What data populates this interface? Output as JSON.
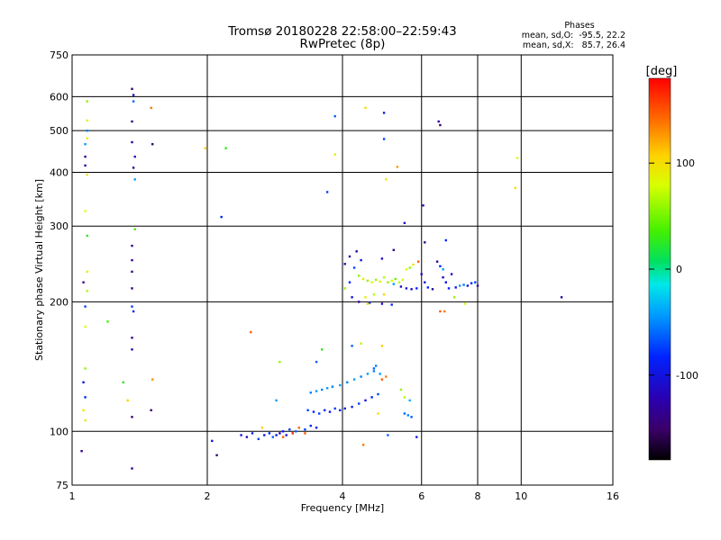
{
  "chart_data": {
    "type": "scatter",
    "title": "Tromsø 20180228 22:58:00–22:59:43",
    "subtitle": "RwPretec (8p)",
    "xlabel": "Frequency [MHz]",
    "ylabel": "Stationary phase Virtual Height [km]",
    "x_scale": "log",
    "y_scale": "log",
    "xlim": [
      1,
      16
    ],
    "ylim": [
      75,
      750
    ],
    "x_ticks": [
      1,
      2,
      4,
      6,
      8,
      10,
      16
    ],
    "y_ticks": [
      75,
      100,
      200,
      300,
      400,
      500,
      600,
      750
    ],
    "grid": true,
    "stats": {
      "heading": "Phases",
      "line_o": "mean, sd,O:  -95.5, 22.2",
      "line_x": "mean, sd,X:   85.7, 26.4"
    },
    "colorbar": {
      "label": "[deg]",
      "min": -180,
      "max": 180,
      "ticks": [
        100,
        0,
        -100
      ]
    },
    "points": [
      [
        1.08,
        585,
        60
      ],
      [
        1.08,
        528,
        85
      ],
      [
        1.08,
        500,
        -70
      ],
      [
        1.08,
        480,
        90
      ],
      [
        1.07,
        465,
        -60
      ],
      [
        1.07,
        435,
        -140
      ],
      [
        1.07,
        415,
        -130
      ],
      [
        1.08,
        395,
        100
      ],
      [
        1.07,
        325,
        80
      ],
      [
        1.08,
        285,
        30
      ],
      [
        1.08,
        235,
        90
      ],
      [
        1.06,
        222,
        -140
      ],
      [
        1.08,
        212,
        70
      ],
      [
        1.07,
        195,
        -90
      ],
      [
        1.07,
        175,
        80
      ],
      [
        1.07,
        140,
        60
      ],
      [
        1.06,
        130,
        -110
      ],
      [
        1.07,
        120,
        -100
      ],
      [
        1.06,
        112,
        100
      ],
      [
        1.07,
        106,
        90
      ],
      [
        1.05,
        90,
        -140
      ],
      [
        1.2,
        180,
        40
      ],
      [
        1.3,
        130,
        30
      ],
      [
        1.33,
        118,
        110
      ],
      [
        1.36,
        625,
        -150
      ],
      [
        1.37,
        605,
        -120
      ],
      [
        1.37,
        585,
        -80
      ],
      [
        1.36,
        525,
        -140
      ],
      [
        1.36,
        470,
        -130
      ],
      [
        1.38,
        435,
        -120
      ],
      [
        1.37,
        410,
        -140
      ],
      [
        1.38,
        385,
        -60
      ],
      [
        1.38,
        295,
        40
      ],
      [
        1.36,
        270,
        -140
      ],
      [
        1.36,
        250,
        -140
      ],
      [
        1.36,
        235,
        -150
      ],
      [
        1.36,
        215,
        -150
      ],
      [
        1.36,
        195,
        -90
      ],
      [
        1.37,
        190,
        -100
      ],
      [
        1.36,
        165,
        -140
      ],
      [
        1.36,
        155,
        -130
      ],
      [
        1.36,
        108,
        -150
      ],
      [
        1.36,
        82,
        -140
      ],
      [
        1.5,
        565,
        140
      ],
      [
        1.51,
        465,
        -150
      ],
      [
        1.51,
        132,
        130
      ],
      [
        1.5,
        112,
        -150
      ],
      [
        1.98,
        455,
        110
      ],
      [
        2.2,
        455,
        30
      ],
      [
        2.05,
        95,
        -110
      ],
      [
        2.1,
        88,
        -150
      ],
      [
        2.15,
        315,
        -100
      ],
      [
        2.5,
        170,
        150
      ],
      [
        2.65,
        102,
        110
      ],
      [
        2.85,
        118,
        -60
      ],
      [
        2.9,
        145,
        60
      ],
      [
        2.38,
        98,
        -110
      ],
      [
        2.45,
        97,
        -120
      ],
      [
        2.52,
        99,
        -100
      ],
      [
        2.6,
        96,
        -90
      ],
      [
        2.68,
        98,
        -110
      ],
      [
        2.75,
        99,
        -100
      ],
      [
        2.8,
        97,
        -80
      ],
      [
        2.85,
        98,
        -110
      ],
      [
        2.9,
        99,
        -120
      ],
      [
        2.95,
        100,
        -100
      ],
      [
        3.0,
        98,
        -110
      ],
      [
        3.05,
        101,
        -90
      ],
      [
        3.1,
        99,
        -100
      ],
      [
        3.15,
        100,
        -80
      ],
      [
        3.2,
        102,
        -100
      ],
      [
        3.3,
        101,
        -90
      ],
      [
        3.4,
        103,
        -100
      ],
      [
        3.5,
        102,
        -110
      ],
      [
        2.95,
        97,
        150
      ],
      [
        3.1,
        99,
        160
      ],
      [
        3.2,
        102,
        140
      ],
      [
        3.3,
        99,
        150
      ],
      [
        3.35,
        112,
        -90
      ],
      [
        3.45,
        111,
        -100
      ],
      [
        3.55,
        110,
        -90
      ],
      [
        3.65,
        112,
        -100
      ],
      [
        3.75,
        111,
        -110
      ],
      [
        3.85,
        113,
        -90
      ],
      [
        3.95,
        112,
        -100
      ],
      [
        4.05,
        113,
        -110
      ],
      [
        4.2,
        114,
        -100
      ],
      [
        4.35,
        116,
        -90
      ],
      [
        4.5,
        118,
        -110
      ],
      [
        4.65,
        120,
        -100
      ],
      [
        4.8,
        122,
        -90
      ],
      [
        3.4,
        123,
        -70
      ],
      [
        3.5,
        124,
        -60
      ],
      [
        3.6,
        125,
        -70
      ],
      [
        3.7,
        126,
        -60
      ],
      [
        3.8,
        127,
        -70
      ],
      [
        3.95,
        128,
        -60
      ],
      [
        4.1,
        130,
        -70
      ],
      [
        4.25,
        132,
        -60
      ],
      [
        4.4,
        134,
        -70
      ],
      [
        4.55,
        136,
        -60
      ],
      [
        4.7,
        138,
        -70
      ],
      [
        4.85,
        136,
        -60
      ],
      [
        4.9,
        132,
        150
      ],
      [
        5.0,
        134,
        140
      ],
      [
        4.75,
        142,
        -70
      ],
      [
        3.5,
        145,
        -80
      ],
      [
        3.6,
        155,
        30
      ],
      [
        4.2,
        158,
        -80
      ],
      [
        4.4,
        160,
        70
      ],
      [
        4.7,
        140,
        -80
      ],
      [
        4.9,
        158,
        110
      ],
      [
        4.45,
        93,
        140
      ],
      [
        4.8,
        110,
        100
      ],
      [
        5.05,
        98,
        -80
      ],
      [
        5.4,
        125,
        60
      ],
      [
        5.5,
        120,
        70
      ],
      [
        5.65,
        118,
        -50
      ],
      [
        5.5,
        110,
        -80
      ],
      [
        5.6,
        109,
        -70
      ],
      [
        5.7,
        108,
        -80
      ],
      [
        4.05,
        245,
        -120
      ],
      [
        4.15,
        255,
        -140
      ],
      [
        4.25,
        240,
        -90
      ],
      [
        4.3,
        262,
        -130
      ],
      [
        4.4,
        250,
        -110
      ],
      [
        4.35,
        230,
        60
      ],
      [
        4.45,
        226,
        90
      ],
      [
        4.55,
        224,
        60
      ],
      [
        4.65,
        222,
        80
      ],
      [
        4.75,
        225,
        60
      ],
      [
        4.85,
        223,
        90
      ],
      [
        4.95,
        228,
        70
      ],
      [
        5.05,
        222,
        60
      ],
      [
        5.15,
        224,
        80
      ],
      [
        5.25,
        226,
        50
      ],
      [
        5.35,
        222,
        70
      ],
      [
        5.45,
        225,
        90
      ],
      [
        5.55,
        238,
        80
      ],
      [
        5.65,
        240,
        60
      ],
      [
        5.2,
        220,
        -60
      ],
      [
        5.4,
        217,
        -120
      ],
      [
        5.55,
        215,
        -110
      ],
      [
        5.7,
        214,
        -120
      ],
      [
        5.85,
        215,
        -100
      ],
      [
        4.2,
        205,
        -110
      ],
      [
        4.35,
        200,
        -130
      ],
      [
        4.6,
        199,
        -100
      ],
      [
        4.9,
        198,
        -120
      ],
      [
        5.15,
        197,
        -100
      ],
      [
        4.5,
        205,
        90
      ],
      [
        4.7,
        208,
        70
      ],
      [
        4.95,
        208,
        110
      ],
      [
        6.0,
        232,
        -120
      ],
      [
        6.1,
        222,
        -110
      ],
      [
        6.2,
        216,
        -100
      ],
      [
        6.35,
        214,
        -130
      ],
      [
        6.5,
        248,
        -140
      ],
      [
        6.6,
        242,
        -100
      ],
      [
        6.7,
        228,
        -120
      ],
      [
        6.8,
        222,
        -110
      ],
      [
        6.9,
        215,
        -100
      ],
      [
        7.0,
        232,
        -120
      ],
      [
        7.15,
        216,
        -110
      ],
      [
        7.3,
        218,
        -60
      ],
      [
        7.45,
        219,
        -70
      ],
      [
        7.6,
        218,
        -110
      ],
      [
        7.75,
        221,
        -100
      ],
      [
        7.9,
        222,
        -90
      ],
      [
        8.0,
        218,
        -130
      ],
      [
        6.6,
        190,
        150
      ],
      [
        6.75,
        190,
        140
      ],
      [
        7.1,
        205,
        60
      ],
      [
        7.5,
        198,
        80
      ],
      [
        3.7,
        360,
        -90
      ],
      [
        3.85,
        540,
        -80
      ],
      [
        3.85,
        440,
        90
      ],
      [
        4.5,
        565,
        100
      ],
      [
        4.95,
        550,
        -110
      ],
      [
        4.95,
        478,
        -90
      ],
      [
        5.0,
        385,
        90
      ],
      [
        5.3,
        412,
        130
      ],
      [
        5.5,
        305,
        -120
      ],
      [
        5.9,
        248,
        150
      ],
      [
        6.05,
        335,
        -130
      ],
      [
        6.1,
        275,
        -140
      ],
      [
        6.55,
        525,
        -130
      ],
      [
        6.6,
        515,
        -150
      ],
      [
        6.8,
        278,
        -100
      ],
      [
        9.8,
        432,
        80
      ],
      [
        9.7,
        368,
        100
      ],
      [
        12.3,
        205,
        -130
      ],
      [
        5.85,
        97,
        -110
      ],
      [
        6.7,
        238,
        -60
      ],
      [
        4.05,
        215,
        60
      ],
      [
        4.9,
        252,
        -120
      ],
      [
        5.2,
        264,
        -140
      ],
      [
        5.75,
        244,
        100
      ],
      [
        4.15,
        222,
        -100
      ],
      [
        4.55,
        198,
        110
      ]
    ]
  }
}
